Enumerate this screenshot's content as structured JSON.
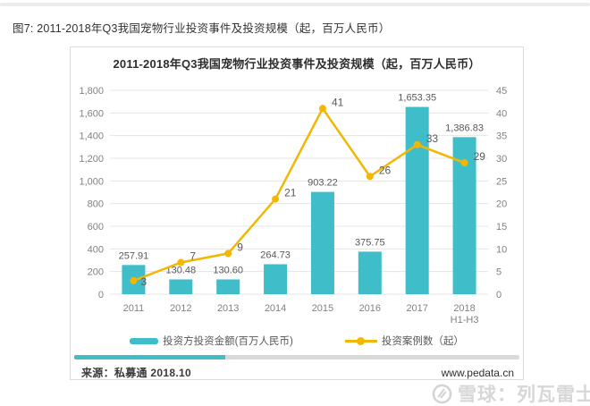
{
  "caption": "图7: 2011-2018年Q3我国宠物行业投资事件及投资规模（起，百万人民币）",
  "chart": {
    "title": "2011-2018年Q3我国宠物行业投资事件及投资规模（起，百万人民币）",
    "legend": {
      "bar_label": "投资方投资金额(百万人民币)",
      "line_label": "投资案例数（起）"
    },
    "source": "来源：私募通 2018.10",
    "website": "www.pedata.cn"
  },
  "watermark": {
    "logo": "xueqiu-snowball-logo",
    "text": "雪球：列瓦雷士"
  },
  "colors": {
    "bar": "#3FBDC9",
    "line": "#F3B703",
    "grid": "#e4e4e4",
    "axis_text": "#828282",
    "label_text": "#595959"
  },
  "chart_data": {
    "type": "bar",
    "subtype": "bar+line combo, dual y-axis",
    "title": "2011-2018年Q3我国宠物行业投资事件及投资规模（起，百万人民币）",
    "categories": [
      "2011",
      "2012",
      "2013",
      "2014",
      "2015",
      "2016",
      "2017",
      "2018\nH1-H3"
    ],
    "series": [
      {
        "name": "投资方投资金额(百万人民币)",
        "type": "bar",
        "axis": "left",
        "values": [
          257.91,
          130.48,
          130.6,
          264.73,
          903.22,
          375.75,
          1653.35,
          1386.83
        ],
        "labels": [
          "257.91",
          "130.48",
          "130.60",
          "264.73",
          "903.22",
          "375.75",
          "1,653.35",
          "1,386.83"
        ]
      },
      {
        "name": "投资案例数（起）",
        "type": "line",
        "axis": "right",
        "values": [
          3,
          7,
          9,
          21,
          41,
          26,
          33,
          29
        ],
        "labels": [
          "3",
          "7",
          "9",
          "21",
          "41",
          "26",
          "33",
          "29"
        ]
      }
    ],
    "left_axis": {
      "min": 0,
      "max": 1800,
      "step": 200,
      "ticks": [
        "0",
        "200",
        "400",
        "600",
        "800",
        "1,000",
        "1,200",
        "1,400",
        "1,600",
        "1,800"
      ]
    },
    "right_axis": {
      "min": 0,
      "max": 45,
      "step": 5,
      "ticks": [
        "0",
        "5",
        "10",
        "15",
        "20",
        "25",
        "30",
        "35",
        "40",
        "45"
      ]
    },
    "grid": true,
    "legend_position": "bottom"
  }
}
